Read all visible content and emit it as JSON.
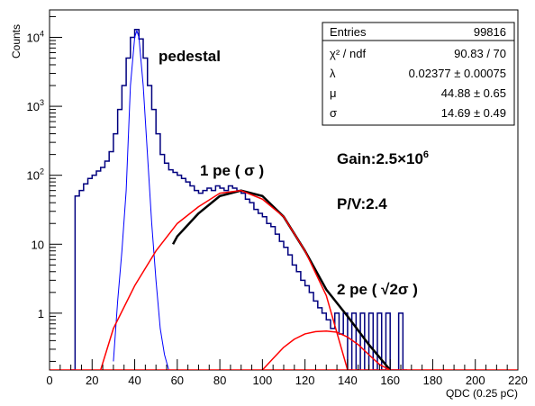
{
  "chart_data": {
    "type": "line",
    "xlabel": "QDC (0.25 pC)",
    "ylabel": "Counts",
    "xlim": [
      0,
      220
    ],
    "ylim": [
      0.15,
      25000
    ],
    "y_scale": "log",
    "grid": false,
    "x_ticks": [
      0,
      20,
      40,
      60,
      80,
      100,
      120,
      140,
      160,
      180,
      200,
      220
    ],
    "y_ticks": [
      {
        "value": 1,
        "label": "1",
        "sup": ""
      },
      {
        "value": 10,
        "label": "10",
        "sup": ""
      },
      {
        "value": 100,
        "label": "10",
        "sup": "2"
      },
      {
        "value": 1000,
        "label": "10",
        "sup": "3"
      },
      {
        "value": 10000,
        "label": "10",
        "sup": "4"
      }
    ],
    "annotations": {
      "pedestal": "pedestal",
      "one_pe": "1 pe ( σ )",
      "gain": "Gain:2.5×10",
      "gain_exp": "6",
      "pv": "P/V:2.4",
      "two_pe": "2 pe ( √2σ )"
    },
    "stats": [
      {
        "label": "Entries",
        "value": "99816"
      },
      {
        "label": "χ² / ndf",
        "value": "90.83 / 70"
      },
      {
        "label": "λ",
        "value": "0.02377 ± 0.00075"
      },
      {
        "label": "μ",
        "value": "44.88 ± 0.65"
      },
      {
        "label": "σ",
        "value": "14.69 ± 0.49"
      }
    ],
    "series": [
      {
        "style": "histogram",
        "color": "#00007f",
        "bins": [
          [
            10,
            12,
            0
          ],
          [
            12,
            14,
            50
          ],
          [
            14,
            16,
            60
          ],
          [
            16,
            18,
            75
          ],
          [
            18,
            20,
            90
          ],
          [
            20,
            22,
            100
          ],
          [
            22,
            24,
            115
          ],
          [
            24,
            26,
            130
          ],
          [
            26,
            28,
            160
          ],
          [
            28,
            30,
            220
          ],
          [
            30,
            32,
            400
          ],
          [
            32,
            34,
            900
          ],
          [
            34,
            36,
            2000
          ],
          [
            36,
            38,
            5000
          ],
          [
            38,
            40,
            10000
          ],
          [
            40,
            42,
            13000
          ],
          [
            42,
            44,
            9500
          ],
          [
            44,
            46,
            5000
          ],
          [
            46,
            48,
            2000
          ],
          [
            48,
            50,
            900
          ],
          [
            50,
            52,
            400
          ],
          [
            52,
            54,
            200
          ],
          [
            54,
            56,
            150
          ],
          [
            56,
            58,
            120
          ],
          [
            58,
            60,
            110
          ],
          [
            60,
            62,
            100
          ],
          [
            62,
            64,
            90
          ],
          [
            64,
            66,
            80
          ],
          [
            66,
            68,
            70
          ],
          [
            68,
            70,
            60
          ],
          [
            70,
            72,
            55
          ],
          [
            72,
            74,
            60
          ],
          [
            74,
            76,
            65
          ],
          [
            76,
            78,
            60
          ],
          [
            78,
            80,
            70
          ],
          [
            80,
            82,
            65
          ],
          [
            82,
            84,
            60
          ],
          [
            84,
            86,
            70
          ],
          [
            86,
            88,
            65
          ],
          [
            88,
            90,
            60
          ],
          [
            90,
            92,
            55
          ],
          [
            92,
            94,
            45
          ],
          [
            94,
            96,
            40
          ],
          [
            96,
            98,
            32
          ],
          [
            98,
            100,
            28
          ],
          [
            100,
            102,
            25
          ],
          [
            102,
            104,
            20
          ],
          [
            104,
            106,
            18
          ],
          [
            106,
            108,
            14
          ],
          [
            108,
            110,
            11
          ],
          [
            110,
            112,
            9
          ],
          [
            112,
            114,
            7
          ],
          [
            114,
            116,
            5
          ],
          [
            116,
            118,
            4
          ],
          [
            118,
            120,
            3
          ],
          [
            120,
            122,
            2.5
          ],
          [
            122,
            124,
            2
          ],
          [
            124,
            126,
            1.5
          ],
          [
            126,
            128,
            1.2
          ],
          [
            128,
            130,
            1
          ],
          [
            130,
            132,
            0.8
          ],
          [
            132,
            134,
            0.6
          ],
          [
            134,
            136,
            1
          ],
          [
            136,
            138,
            0.5
          ],
          [
            138,
            140,
            1
          ],
          [
            140,
            142,
            0.15
          ],
          [
            142,
            144,
            1
          ],
          [
            144,
            146,
            0.15
          ],
          [
            146,
            148,
            1
          ],
          [
            148,
            150,
            0.15
          ],
          [
            150,
            152,
            1
          ],
          [
            152,
            154,
            0.15
          ],
          [
            154,
            156,
            1
          ],
          [
            156,
            158,
            0.15
          ],
          [
            158,
            160,
            1
          ],
          [
            160,
            162,
            0.15
          ],
          [
            162,
            164,
            0.15
          ],
          [
            164,
            166,
            1
          ],
          [
            166,
            168,
            0.15
          ]
        ]
      },
      {
        "name": "pedestal fit",
        "style": "line",
        "color": "#0000ff",
        "x": [
          30,
          32,
          34,
          36,
          38,
          40,
          41,
          42,
          44,
          46,
          48,
          50,
          52,
          54,
          56
        ],
        "y": [
          0.2,
          1.5,
          8,
          60,
          2000,
          10000,
          12500,
          10000,
          2000,
          200,
          20,
          3,
          0.6,
          0.25,
          0.15
        ]
      },
      {
        "name": "total fit",
        "style": "line",
        "color": "#000000",
        "x": [
          58,
          60,
          70,
          80,
          90,
          100,
          110,
          120,
          130,
          140,
          150,
          160
        ],
        "y": [
          10,
          13,
          28,
          50,
          60,
          50,
          25,
          8,
          2.2,
          0.9,
          0.35,
          0.15
        ]
      },
      {
        "name": "1 pe component",
        "style": "line",
        "color": "#ff0000",
        "x": [
          24,
          30,
          40,
          50,
          60,
          70,
          80,
          90,
          100,
          110,
          120,
          130,
          140
        ],
        "y": [
          0.15,
          0.6,
          2.5,
          8,
          20,
          35,
          55,
          60,
          45,
          25,
          8,
          1.8,
          0.15
        ]
      },
      {
        "name": "2 pe component",
        "style": "line",
        "color": "#ff0000",
        "x": [
          100,
          105,
          110,
          115,
          120,
          125,
          130,
          135,
          140,
          145,
          150,
          155,
          160
        ],
        "y": [
          0.15,
          0.22,
          0.32,
          0.42,
          0.5,
          0.54,
          0.55,
          0.53,
          0.45,
          0.35,
          0.25,
          0.18,
          0.15
        ]
      },
      {
        "name": "baseline",
        "style": "line",
        "color": "#ff0000",
        "x": [
          0,
          220
        ],
        "y": [
          0.15,
          0.15
        ]
      }
    ]
  }
}
